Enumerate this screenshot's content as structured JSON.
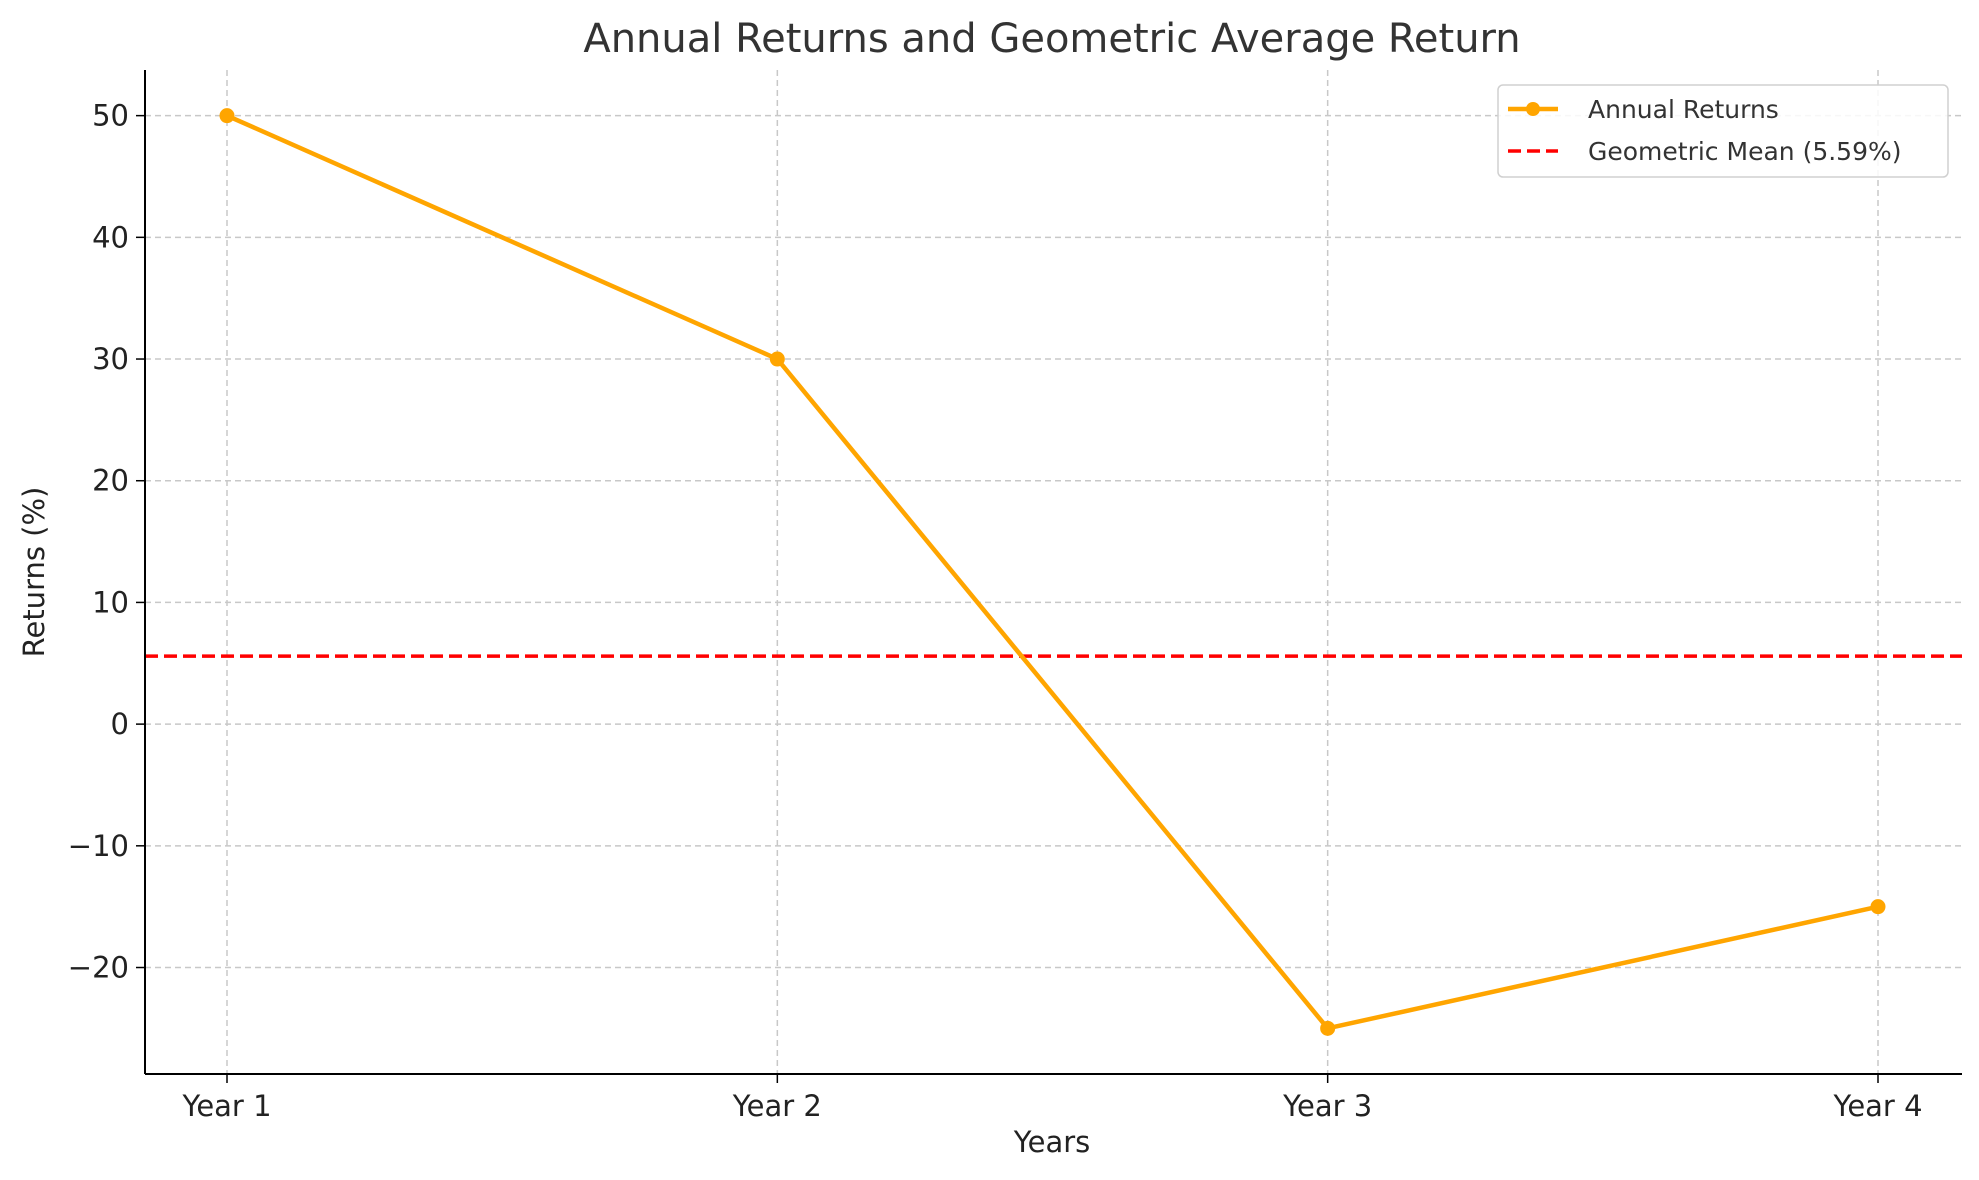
{
  "chart_data": {
    "type": "line",
    "title": "Annual Returns and Geometric Average Return",
    "xlabel": "Years",
    "ylabel": "Returns (%)",
    "categories": [
      "Year 1",
      "Year 2",
      "Year 3",
      "Year 4"
    ],
    "series": [
      {
        "name": "Annual Returns",
        "values": [
          50,
          30,
          -25,
          -15
        ],
        "color": "#FFA500",
        "marker": "circle",
        "line_style": "solid"
      }
    ],
    "reference_lines": [
      {
        "name": "Geometric Mean (5.59%)",
        "y": 5.59,
        "color": "#FF0000",
        "line_style": "dashed"
      }
    ],
    "ylim": [
      -28.75,
      53.75
    ],
    "yticks": [
      -20,
      -10,
      0,
      10,
      20,
      30,
      40,
      50
    ],
    "ytick_labels": [
      "−20",
      "−10",
      "0",
      "10",
      "20",
      "30",
      "40",
      "50"
    ],
    "grid": true,
    "legend_position": "top-right"
  }
}
